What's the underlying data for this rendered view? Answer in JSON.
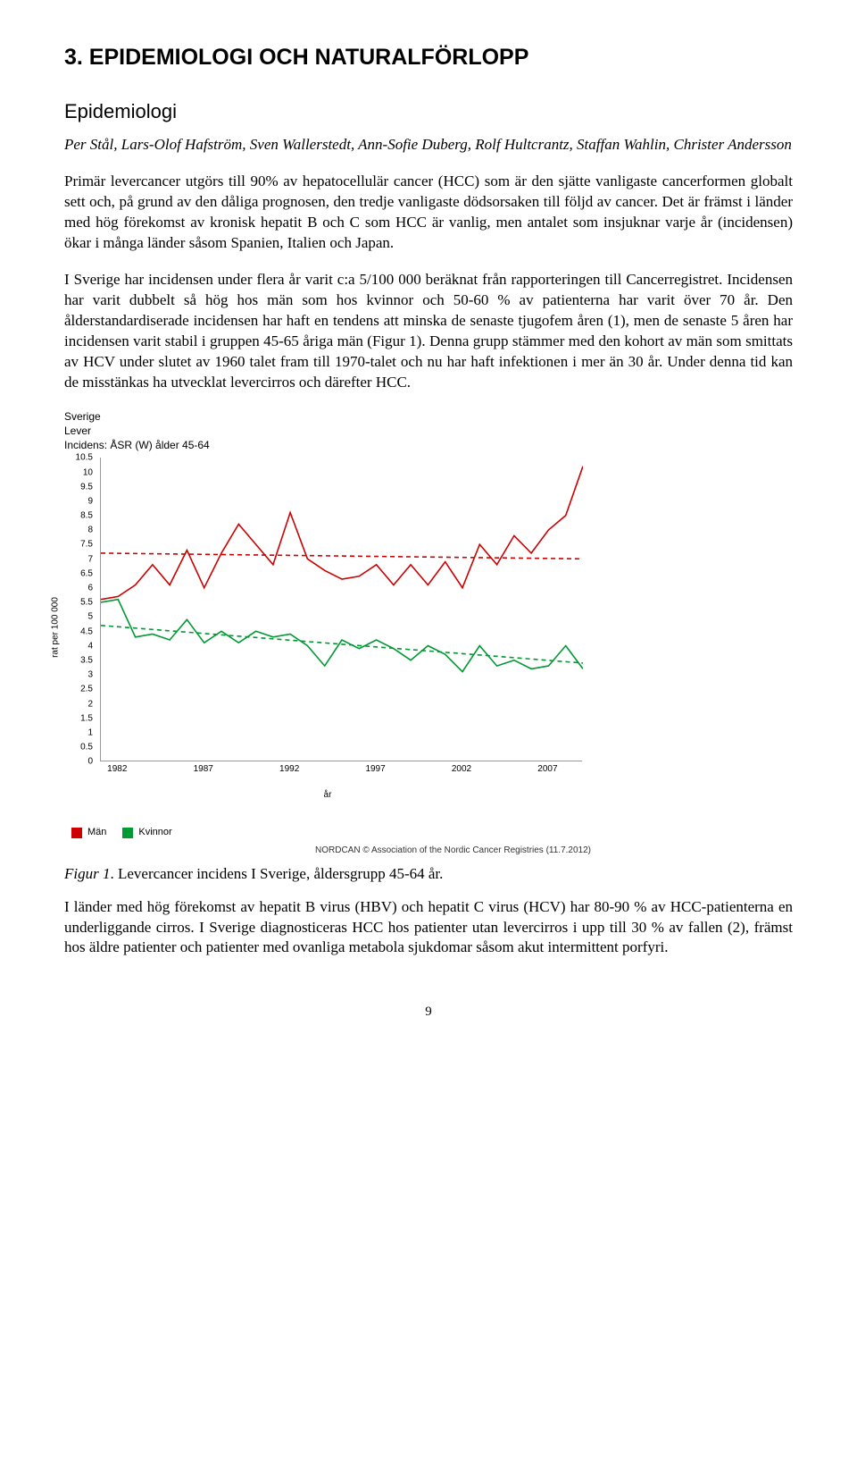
{
  "heading1": "3. EPIDEMIOLOGI OCH NATURALFÖRLOPP",
  "heading2": "Epidemiologi",
  "authors": "Per Stål, Lars-Olof Hafström, Sven Wallerstedt, Ann-Sofie Duberg, Rolf Hultcrantz, Staffan Wahlin, Christer Andersson",
  "para1": "Primär levercancer utgörs till 90% av hepatocellulär cancer (HCC) som är den sjätte vanligaste cancerformen globalt sett och, på grund av den dåliga prognosen, den tredje vanligaste dödsorsaken till följd av cancer. Det är främst i länder med hög förekomst av kronisk hepatit B och C som HCC är vanlig, men antalet som insjuknar varje år (incidensen) ökar i många länder såsom Spanien, Italien och Japan.",
  "para2": "I Sverige har incidensen under flera år varit c:a 5/100 000 beräknat från rapporteringen till Cancerregistret. Incidensen har varit dubbelt så hög hos män som hos kvinnor och 50-60 % av patienterna har varit över 70 år. Den ålderstandardiserade incidensen har haft en tendens att minska de senaste tjugofem åren (1), men de senaste 5 åren har incidensen varit stabil i gruppen 45-65 åriga män (Figur 1). Denna grupp stämmer med den kohort av män som smittats av HCV under slutet av 1960 talet fram till 1970-talet och nu har haft infektionen i mer än 30 år. Under denna tid kan de misstänkas ha utvecklat levercirros och därefter HCC.",
  "chart": {
    "header": {
      "line1": "Sverige",
      "line2": "Lever",
      "line3": "Incidens: ÅSR (W) ålder 45-64"
    },
    "y_label": "rat per 100 000",
    "x_label": "år",
    "y_ticks": [
      "0",
      "0.5",
      "1",
      "1.5",
      "2",
      "2.5",
      "3",
      "3.5",
      "4",
      "4.5",
      "5",
      "5.5",
      "6",
      "6.5",
      "7",
      "7.5",
      "8",
      "8.5",
      "9",
      "9.5",
      "10",
      "10.5"
    ],
    "x_ticks": [
      "1982",
      "1987",
      "1992",
      "1997",
      "2002",
      "2007"
    ],
    "xlim": [
      1981,
      2009
    ],
    "ylim": [
      0,
      10.5
    ],
    "series": {
      "men": {
        "color": "#cc0000",
        "dash_color": "#cc0000",
        "points": [
          [
            1981,
            5.6
          ],
          [
            1982,
            5.7
          ],
          [
            1983,
            6.1
          ],
          [
            1984,
            6.8
          ],
          [
            1985,
            6.1
          ],
          [
            1986,
            7.3
          ],
          [
            1987,
            6.0
          ],
          [
            1988,
            7.2
          ],
          [
            1989,
            8.2
          ],
          [
            1990,
            7.5
          ],
          [
            1991,
            6.8
          ],
          [
            1992,
            8.6
          ],
          [
            1993,
            7.0
          ],
          [
            1994,
            6.6
          ],
          [
            1995,
            6.3
          ],
          [
            1996,
            6.4
          ],
          [
            1997,
            6.8
          ],
          [
            1998,
            6.1
          ],
          [
            1999,
            6.8
          ],
          [
            2000,
            6.1
          ],
          [
            2001,
            6.9
          ],
          [
            2002,
            6.0
          ],
          [
            2003,
            7.5
          ],
          [
            2004,
            6.8
          ],
          [
            2005,
            7.8
          ],
          [
            2006,
            7.2
          ],
          [
            2007,
            8.0
          ],
          [
            2008,
            8.5
          ],
          [
            2009,
            10.2
          ]
        ],
        "trend": [
          [
            1981,
            7.2
          ],
          [
            2009,
            7.0
          ]
        ]
      },
      "women": {
        "color": "#009933",
        "dash_color": "#009933",
        "points": [
          [
            1981,
            5.5
          ],
          [
            1982,
            5.6
          ],
          [
            1983,
            4.3
          ],
          [
            1984,
            4.4
          ],
          [
            1985,
            4.2
          ],
          [
            1986,
            4.9
          ],
          [
            1987,
            4.1
          ],
          [
            1988,
            4.5
          ],
          [
            1989,
            4.1
          ],
          [
            1990,
            4.5
          ],
          [
            1991,
            4.3
          ],
          [
            1992,
            4.4
          ],
          [
            1993,
            4.0
          ],
          [
            1994,
            3.3
          ],
          [
            1995,
            4.2
          ],
          [
            1996,
            3.9
          ],
          [
            1997,
            4.2
          ],
          [
            1998,
            3.9
          ],
          [
            1999,
            3.5
          ],
          [
            2000,
            4.0
          ],
          [
            2001,
            3.7
          ],
          [
            2002,
            3.1
          ],
          [
            2003,
            4.0
          ],
          [
            2004,
            3.3
          ],
          [
            2005,
            3.5
          ],
          [
            2006,
            3.2
          ],
          [
            2007,
            3.3
          ],
          [
            2008,
            4.0
          ],
          [
            2009,
            3.2
          ]
        ],
        "trend": [
          [
            1981,
            4.7
          ],
          [
            2009,
            3.4
          ]
        ]
      }
    },
    "legend": {
      "men": "Män",
      "women": "Kvinnor"
    },
    "footer": "NORDCAN © Association of the Nordic Cancer Registries (11.7.2012)"
  },
  "caption_label": "Figur 1",
  "caption_text": ". Levercancer incidens I Sverige, åldersgrupp 45-64 år.",
  "para3": "I länder med hög förekomst av hepatit B virus (HBV) och hepatit C virus (HCV) har 80-90 % av HCC-patienterna en underliggande cirros. I Sverige diagnosticeras HCC hos patienter utan levercirros i upp till 30 % av fallen (2), främst hos äldre patienter och patienter med ovanliga metabola sjukdomar såsom akut intermittent porfyri.",
  "page_number": "9"
}
